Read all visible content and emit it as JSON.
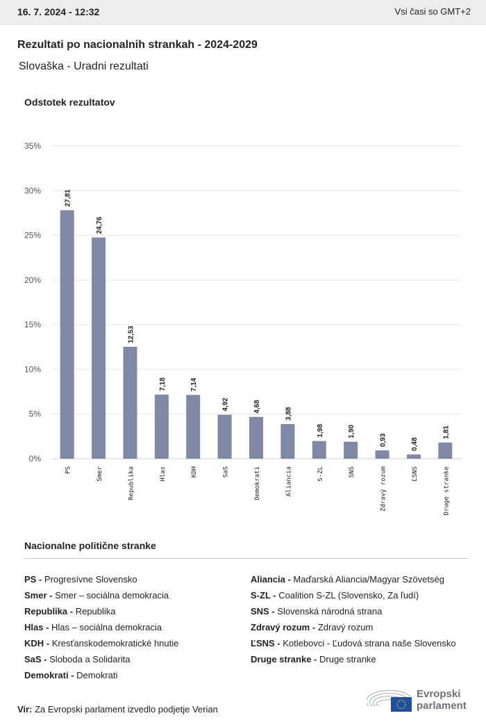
{
  "header": {
    "date": "16. 7. 2024 - 12:32",
    "timezone": "Vsi časi so GMT+2"
  },
  "title": "Rezultati po nacionalnih strankah - 2024-2029",
  "subtitle": "Slovaška - Uradni rezultati",
  "chart_data": {
    "type": "bar",
    "ylabel": "Odstotek rezultatov",
    "ylim": [
      0,
      35
    ],
    "yticks": [
      "0%",
      "5%",
      "10%",
      "15%",
      "20%",
      "25%",
      "30%",
      "35%"
    ],
    "categories": [
      "PS",
      "Smer",
      "Republika",
      "Hlas",
      "KDH",
      "SaS",
      "Demokrati",
      "Aliancia",
      "S-ZL",
      "SNS",
      "Zdravý rozum",
      "ĽSNS",
      "Druge stranke"
    ],
    "values": [
      27.81,
      24.76,
      12.53,
      7.18,
      7.14,
      4.92,
      4.68,
      3.88,
      1.98,
      1.9,
      0.93,
      0.48,
      1.81
    ],
    "labels": [
      "27,81",
      "24,76",
      "12,53",
      "7,18",
      "7,14",
      "4,92",
      "4,68",
      "3,88",
      "1,98",
      "1,90",
      "0,93",
      "0,48",
      "1,81"
    ],
    "bar_color": "#7f88a4",
    "grid": true
  },
  "legend": {
    "title": "Nacionalne politične stranke",
    "left": [
      {
        "abbr": "PS -",
        "name": "Progresívne Slovensko"
      },
      {
        "abbr": "Smer -",
        "name": "Smer – sociálna demokracia"
      },
      {
        "abbr": "Republika -",
        "name": "Republika"
      },
      {
        "abbr": "Hlas -",
        "name": "Hlas – sociálna demokracia"
      },
      {
        "abbr": "KDH -",
        "name": "Kresťanskodemokratické hnutie"
      },
      {
        "abbr": "SaS -",
        "name": "Sloboda a Solidarita"
      },
      {
        "abbr": "Demokrati -",
        "name": "Demokrati"
      }
    ],
    "right": [
      {
        "abbr": "Aliancia -",
        "name": "Maďarská Aliancia/Magyar Szövetség"
      },
      {
        "abbr": "S-ZL -",
        "name": "Coalition S-ZL (Slovensko, Za ľudí)"
      },
      {
        "abbr": "SNS -",
        "name": "Slovenská národná strana"
      },
      {
        "abbr": "Zdravý rozum -",
        "name": "Zdravý rozum"
      },
      {
        "abbr": "ĽSNS -",
        "name": "Kotlebovci - Ľudová strana naše Slovensko"
      },
      {
        "abbr": "Druge stranke -",
        "name": "Druge stranke"
      }
    ]
  },
  "source": {
    "label": "Vir:",
    "text": "Za Evropski parlament izvedlo podjetje Verian"
  },
  "logo": {
    "line1": "Evropski",
    "line2": "parlament"
  }
}
